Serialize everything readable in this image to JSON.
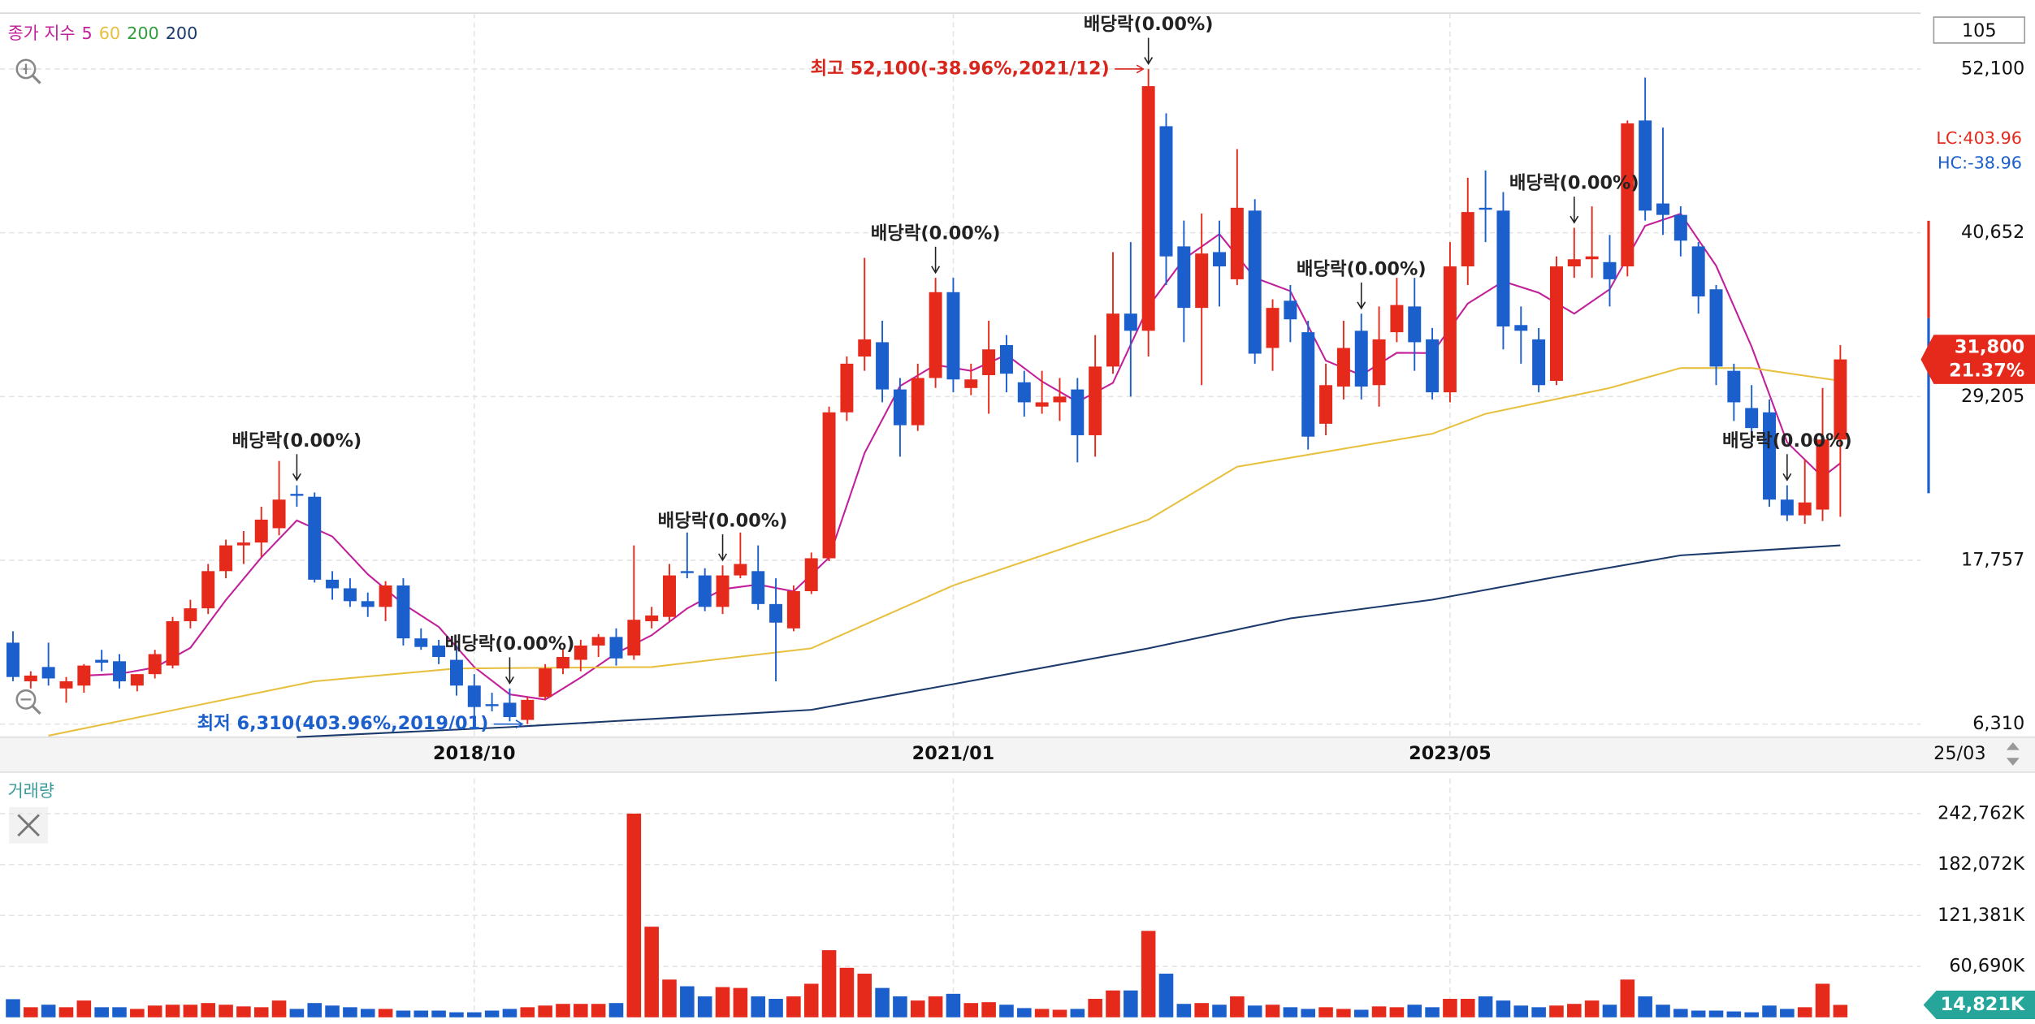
{
  "chart_data": {
    "type": "candlestick",
    "legend_prefix": "종가 지수",
    "series": [
      {
        "name": "5",
        "color": "#c21f9a",
        "x": [
          4,
          6,
          8,
          10,
          12,
          14,
          16,
          18,
          20,
          22,
          24,
          26,
          28,
          30,
          32,
          34,
          36,
          38,
          40,
          42,
          44,
          46,
          48,
          50,
          52,
          54,
          56,
          58,
          60,
          62,
          64,
          66,
          68,
          70,
          72,
          74,
          76,
          78,
          80,
          82,
          84,
          86,
          88,
          90,
          92,
          94,
          96,
          98,
          100,
          102,
          103
        ],
        "values": [
          9700,
          9820,
          10260,
          11640,
          14980,
          17960,
          20540,
          19420,
          16780,
          14700,
          13100,
          10300,
          8380,
          8020,
          9560,
          11260,
          12520,
          14400,
          15740,
          16060,
          15580,
          17940,
          25260,
          29940,
          31420,
          31000,
          32120,
          30260,
          28820,
          30160,
          35500,
          38820,
          40560,
          37500,
          36580,
          31720,
          30700,
          32260,
          32240,
          35700,
          37260,
          36460,
          35000,
          36700,
          41140,
          41980,
          38340,
          32680,
          26000,
          23580,
          24540
        ]
      },
      {
        "name": "60",
        "color": "#e8c040",
        "x": [
          2,
          17,
          25,
          36,
          45,
          53,
          64,
          69,
          80,
          83,
          90,
          94,
          98,
          103
        ],
        "values": [
          5500,
          9300,
          10200,
          10300,
          11600,
          16000,
          20600,
          24300,
          26600,
          28000,
          29800,
          31200,
          31200,
          30300
        ]
      },
      {
        "name": "200",
        "color": "#2e9e3e",
        "x": [],
        "values": []
      },
      {
        "name": "200",
        "color": "#1b3a6b",
        "x": [
          16,
          28,
          45,
          53,
          64,
          72,
          80,
          87,
          94,
          103
        ],
        "values": [
          5400,
          6100,
          7300,
          9100,
          11600,
          13700,
          15000,
          16600,
          18100,
          18800
        ]
      }
    ],
    "open": [
      12000,
      9300,
      10300,
      8800,
      9000,
      10800,
      10700,
      9000,
      9800,
      10400,
      13500,
      14400,
      17000,
      18800,
      19000,
      20000,
      22400,
      22200,
      16400,
      15800,
      14900,
      14500,
      16000,
      12300,
      11800,
      10800,
      9000,
      7700,
      7800,
      6600,
      8200,
      10200,
      10800,
      11800,
      12400,
      11100,
      13500,
      13800,
      17000,
      16700,
      14500,
      16700,
      17000,
      14700,
      13000,
      15600,
      17900,
      28100,
      32000,
      33000,
      29700,
      27200,
      30500,
      36500,
      29800,
      30700,
      32800,
      30200,
      28500,
      28800,
      29700,
      26500,
      31300,
      35000,
      33800,
      48100,
      39700,
      35400,
      39300,
      37400,
      42200,
      32600,
      35900,
      33700,
      27300,
      29900,
      33800,
      30000,
      33700,
      35500,
      33200,
      29500,
      38300,
      42400,
      42200,
      34200,
      33200,
      30300,
      38300,
      38800,
      38600,
      38300,
      48500,
      42700,
      41900,
      39700,
      36700,
      31000,
      28400,
      28100,
      22000,
      20900,
      21300,
      26200
    ],
    "high": [
      12800,
      10000,
      12000,
      9600,
      10500,
      11500,
      11200,
      9800,
      11500,
      13800,
      15000,
      17500,
      19200,
      19800,
      21500,
      24700,
      23000,
      22500,
      17000,
      16500,
      15500,
      16300,
      16500,
      13000,
      12200,
      11800,
      9800,
      8500,
      8800,
      8200,
      10500,
      11500,
      12200,
      12600,
      13000,
      18800,
      14500,
      17500,
      19700,
      17200,
      17400,
      19700,
      18800,
      16500,
      16000,
      18300,
      28500,
      32000,
      38900,
      34500,
      30500,
      31500,
      37500,
      37500,
      31500,
      34500,
      33500,
      31000,
      31000,
      30500,
      30500,
      33500,
      39300,
      40000,
      52100,
      49000,
      41500,
      42000,
      41500,
      46500,
      43000,
      36000,
      37000,
      34500,
      31500,
      34500,
      35000,
      35500,
      37500,
      37500,
      34000,
      40000,
      44500,
      45000,
      43500,
      35500,
      34000,
      39000,
      41000,
      42500,
      40500,
      48500,
      51500,
      48000,
      42500,
      40000,
      37000,
      31500,
      30000,
      29000,
      23000,
      24800,
      29800,
      32800
    ],
    "low": [
      9300,
      8800,
      9000,
      7800,
      8500,
      10000,
      8800,
      8600,
      9500,
      10200,
      13000,
      14000,
      16500,
      17500,
      18000,
      19500,
      21500,
      16200,
      15000,
      14500,
      13800,
      13500,
      11800,
      11500,
      10500,
      8300,
      6800,
      7200,
      6500,
      6310,
      8000,
      9800,
      10000,
      11000,
      10400,
      10800,
      13000,
      13500,
      16500,
      14200,
      14000,
      16500,
      14300,
      9300,
      12800,
      15400,
      17700,
      27500,
      31000,
      28800,
      25000,
      26800,
      29800,
      29500,
      29300,
      28000,
      29500,
      27800,
      28000,
      27500,
      24600,
      25000,
      30800,
      29200,
      32000,
      37000,
      33000,
      30000,
      35500,
      37000,
      31500,
      31000,
      33000,
      25500,
      26500,
      29000,
      29000,
      28500,
      33000,
      31000,
      29000,
      28800,
      37000,
      40000,
      32500,
      31500,
      29500,
      30000,
      37500,
      37500,
      35500,
      37600,
      41500,
      40500,
      39000,
      35000,
      30000,
      27500,
      26000,
      21500,
      20500,
      20300,
      20500,
      20800
    ],
    "close": [
      9600,
      9700,
      9500,
      9300,
      10400,
      10600,
      9300,
      9800,
      11200,
      13500,
      14400,
      17000,
      18800,
      19000,
      20600,
      22000,
      22300,
      16400,
      15800,
      14900,
      14500,
      16000,
      12300,
      11700,
      11000,
      9000,
      7500,
      7600,
      6800,
      8000,
      10200,
      11000,
      11800,
      12400,
      10900,
      13600,
      13900,
      16700,
      16900,
      14500,
      16700,
      17500,
      14700,
      13400,
      15600,
      17900,
      28100,
      31500,
      33200,
      29700,
      27200,
      30500,
      36500,
      30400,
      30400,
      32500,
      30800,
      28800,
      28800,
      29200,
      26500,
      31300,
      35000,
      33800,
      50900,
      39000,
      35400,
      39200,
      38300,
      42400,
      32200,
      35400,
      34600,
      26400,
      30000,
      32600,
      29900,
      33200,
      35600,
      33000,
      29500,
      38300,
      42100,
      42300,
      34100,
      33800,
      30000,
      38300,
      38800,
      39000,
      37400,
      48300,
      42200,
      41900,
      40100,
      36200,
      31300,
      28800,
      27000,
      22000,
      20900,
      21800,
      26200,
      31800
    ],
    "volume": [
      21600,
      12000,
      15000,
      12000,
      20000,
      12000,
      12000,
      10000,
      14000,
      15000,
      15000,
      17000,
      15000,
      13000,
      12000,
      20000,
      10000,
      17000,
      14000,
      12000,
      10000,
      10000,
      8000,
      8000,
      8000,
      6000,
      6000,
      8000,
      10000,
      12000,
      14000,
      16000,
      16000,
      16000,
      17000,
      242762,
      108000,
      45000,
      37000,
      25000,
      36000,
      35000,
      25000,
      22000,
      25000,
      40000,
      80000,
      59000,
      52000,
      35000,
      25000,
      20000,
      25000,
      28000,
      17000,
      18000,
      15000,
      11000,
      10000,
      9000,
      10000,
      22000,
      32000,
      32000,
      103000,
      52000,
      16000,
      17000,
      15000,
      25000,
      14000,
      15000,
      12000,
      10000,
      12000,
      10000,
      9000,
      13000,
      12000,
      15000,
      12000,
      22000,
      22000,
      25000,
      20000,
      14000,
      12000,
      14000,
      16000,
      20000,
      15000,
      45000,
      25000,
      15000,
      10000,
      8000,
      8000,
      7000,
      6000,
      14000,
      10000,
      12000,
      40000,
      14821
    ],
    "up_color": "#e52a1c",
    "down_color": "#1b5fcc",
    "ylim": [
      5400,
      56000
    ],
    "yticks": [
      {
        "value": 6310,
        "label": "6,310"
      },
      {
        "value": 17757,
        "label": "17,757"
      },
      {
        "value": 29205,
        "label": "29,205"
      },
      {
        "value": 40652,
        "label": "40,652"
      },
      {
        "value": 52100,
        "label": "52,100"
      }
    ],
    "xticks": [
      {
        "value": 26,
        "label": "2018/10"
      },
      {
        "value": 53,
        "label": "2021/01"
      },
      {
        "value": 81,
        "label": "2023/05"
      }
    ],
    "last_date": "25/03",
    "volume_title": "거래량",
    "volume_ylim": [
      0,
      284500
    ],
    "volume_ticks": [
      {
        "value": 60690,
        "label": "60,690K"
      },
      {
        "value": 121381,
        "label": "121,381K"
      },
      {
        "value": 182072,
        "label": "182,072K"
      },
      {
        "value": 242762,
        "label": "242,762K"
      }
    ],
    "volume_current": {
      "value": 14821,
      "label": "14,821K"
    },
    "current_price": {
      "value": 31800,
      "label": "31,800"
    },
    "current_change": "21.37%",
    "zoom_level": 105,
    "lc": "LC:403.96",
    "hc": "HC:-38.96",
    "dividends": [
      {
        "index": 16,
        "text": "배당락(0.00%)"
      },
      {
        "index": 28,
        "text": "배당락(0.00%)"
      },
      {
        "index": 40,
        "text": "배당락(0.00%)"
      },
      {
        "index": 52,
        "text": "배당락(0.00%)"
      },
      {
        "index": 64,
        "text": "배당락(0.00%)"
      },
      {
        "index": 76,
        "text": "배당락(0.00%)"
      },
      {
        "index": 88,
        "text": "배당락(0.00%)"
      },
      {
        "index": 100,
        "text": "배당락(0.00%)"
      }
    ],
    "high_note": {
      "index": 64,
      "text": "최고 52,100(-38.96%,2021/12)"
    },
    "low_note": {
      "index": 29,
      "text": "최저 6,310(403.96%,2019/01)"
    }
  }
}
